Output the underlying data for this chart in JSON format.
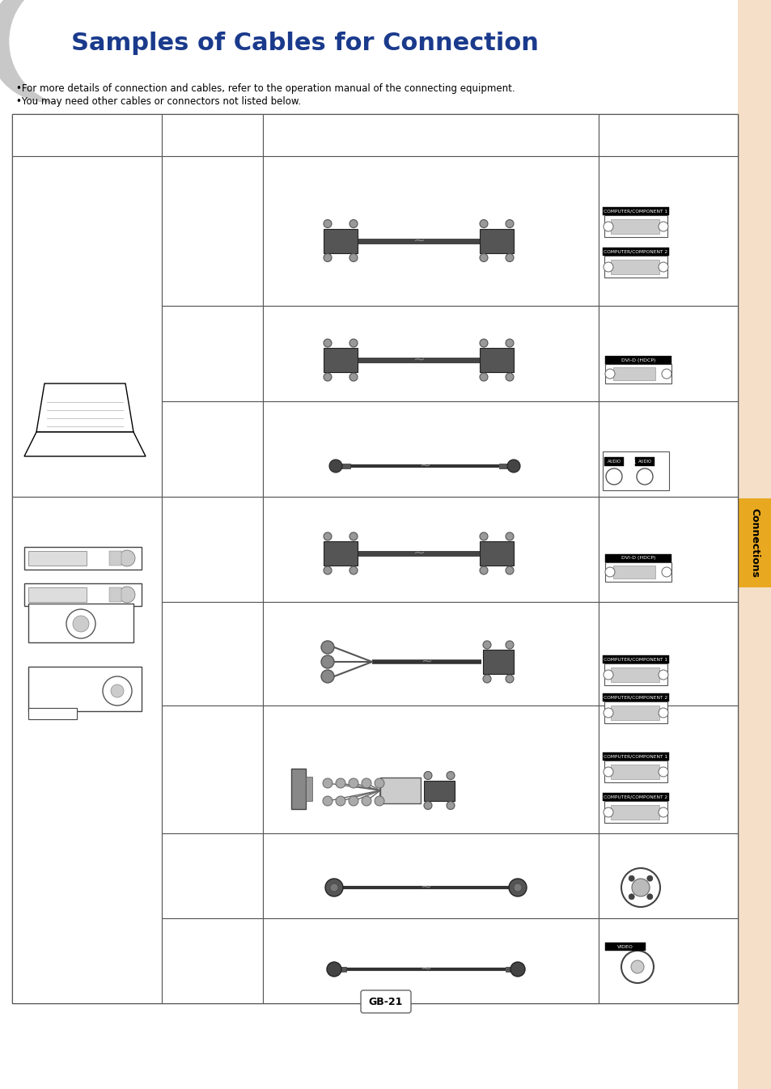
{
  "title": "Samples of Cables for Connection",
  "title_color": "#1a3a8c",
  "background_color": "#ffffff",
  "sidebar_color": "#f5dfc8",
  "bullet1": "For more details of connection and cables, refer to the operation manual of the connecting equipment.",
  "bullet2": "You may need other cables or connectors not listed below.",
  "table_border_color": "#555555",
  "page_number": "GB-21",
  "connections_label": "Connections",
  "connections_bg": "#e8a820"
}
